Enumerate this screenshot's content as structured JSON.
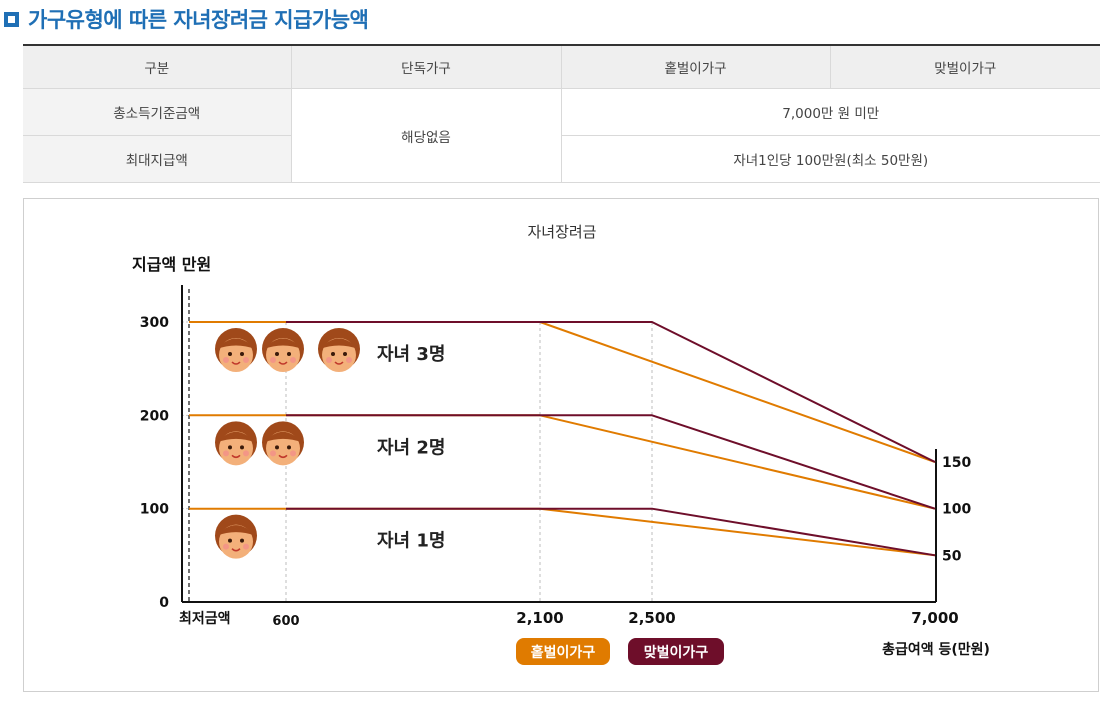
{
  "page": {
    "title": "가구유형에 따른 자녀장려금 지급가능액"
  },
  "table": {
    "headers": [
      "구분",
      "단독가구",
      "홑벌이가구",
      "맞벌이가구"
    ],
    "rows": [
      {
        "label": "총소득기준금액",
        "single": "해당없음",
        "combined": "7,000만 원 미만"
      },
      {
        "label": "최대지급액",
        "combined": "자녀1인당 100만원(최소 50만원)"
      }
    ]
  },
  "chart_data": {
    "type": "line",
    "title": "자녀장려금",
    "ylabel": "지급액 만원",
    "xlabel": "총급여액 등(만원)",
    "ylim": [
      0,
      300
    ],
    "x_ticks": [
      {
        "label": "최저금액",
        "value": 0
      },
      {
        "label": "600",
        "value": 600
      },
      {
        "label": "2,100",
        "value": 2100
      },
      {
        "label": "2,500",
        "value": 2500
      },
      {
        "label": "7,000",
        "value": 7000
      }
    ],
    "y_ticks": [
      {
        "label": "0",
        "value": 0
      },
      {
        "label": "100",
        "value": 100
      },
      {
        "label": "200",
        "value": 200
      },
      {
        "label": "300",
        "value": 300
      }
    ],
    "right_ticks": [
      {
        "label": "150",
        "value": 150
      },
      {
        "label": "100",
        "value": 100
      },
      {
        "label": "50",
        "value": 50
      }
    ],
    "legend": [
      {
        "name": "홑벌이가구",
        "color": "#e07b00"
      },
      {
        "name": "맞벌이가구",
        "color": "#6e0e2a"
      }
    ],
    "series": [
      {
        "name": "홑벌이가구",
        "group": "자녀 3명",
        "color": "#e07b00",
        "points": [
          [
            0,
            300
          ],
          [
            2100,
            300
          ],
          [
            7000,
            150
          ]
        ]
      },
      {
        "name": "맞벌이가구",
        "group": "자녀 3명",
        "color": "#6e0e2a",
        "points": [
          [
            600,
            300
          ],
          [
            2500,
            300
          ],
          [
            7000,
            150
          ]
        ]
      },
      {
        "name": "홑벌이가구",
        "group": "자녀 2명",
        "color": "#e07b00",
        "points": [
          [
            0,
            200
          ],
          [
            2100,
            200
          ],
          [
            7000,
            100
          ]
        ]
      },
      {
        "name": "맞벌이가구",
        "group": "자녀 2명",
        "color": "#6e0e2a",
        "points": [
          [
            600,
            200
          ],
          [
            2500,
            200
          ],
          [
            7000,
            100
          ]
        ]
      },
      {
        "name": "홑벌이가구",
        "group": "자녀 1명",
        "color": "#e07b00",
        "points": [
          [
            0,
            100
          ],
          [
            2100,
            100
          ],
          [
            7000,
            50
          ]
        ]
      },
      {
        "name": "맞벌이가구",
        "group": "자녀 1명",
        "color": "#6e0e2a",
        "points": [
          [
            600,
            100
          ],
          [
            2500,
            100
          ],
          [
            7000,
            50
          ]
        ]
      }
    ],
    "annotations": [
      {
        "text": "자녀 3명",
        "children": 3,
        "y": 300
      },
      {
        "text": "자녀 2명",
        "children": 2,
        "y": 200
      },
      {
        "text": "자녀 1명",
        "children": 1,
        "y": 100
      }
    ]
  }
}
